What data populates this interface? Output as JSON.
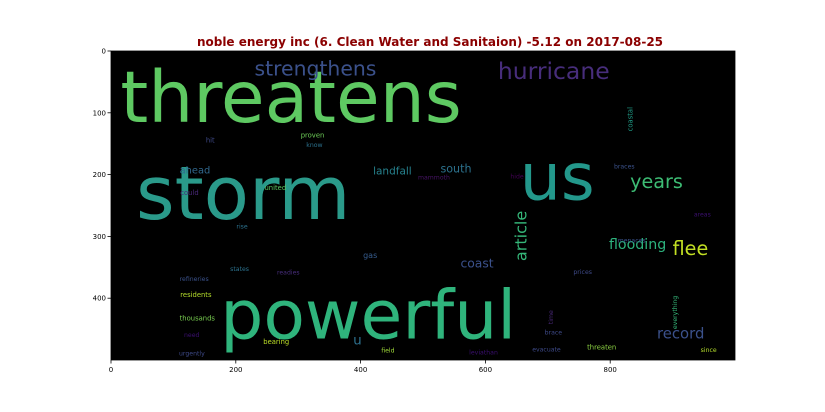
{
  "chart_data": {
    "type": "wordcloud",
    "title": "noble energy inc (6. Clean Water and Sanitaion) -5.12 on 2017-08-25",
    "title_color": "#8b0000",
    "background_color": "#000000",
    "xlim": [
      0,
      1000
    ],
    "ylim": [
      500,
      0
    ],
    "xticks": [
      0,
      200,
      400,
      600,
      800
    ],
    "yticks": [
      0,
      100,
      200,
      300,
      400
    ],
    "words": [
      {
        "text": "threatens",
        "x": 15,
        "y": 115,
        "size": 115,
        "color": "#5ec962",
        "rotate": false
      },
      {
        "text": "storm",
        "x": 40,
        "y": 272,
        "size": 120,
        "color": "#2a9a8a",
        "rotate": false
      },
      {
        "text": "us",
        "x": 655,
        "y": 240,
        "size": 105,
        "color": "#23988b",
        "rotate": false
      },
      {
        "text": "powerful",
        "x": 175,
        "y": 465,
        "size": 110,
        "color": "#2fb47c",
        "rotate": false
      },
      {
        "text": "hurricane",
        "x": 620,
        "y": 45,
        "size": 38,
        "color": "#472d7b",
        "rotate": false
      },
      {
        "text": "strengthens",
        "x": 230,
        "y": 40,
        "size": 33,
        "color": "#3b518b",
        "rotate": false
      },
      {
        "text": "years",
        "x": 832,
        "y": 222,
        "size": 31,
        "color": "#3dbc74",
        "rotate": false
      },
      {
        "text": "flee",
        "x": 900,
        "y": 330,
        "size": 31,
        "color": "#c2df23",
        "rotate": false
      },
      {
        "text": "record",
        "x": 875,
        "y": 465,
        "size": 24,
        "color": "#3b518b",
        "rotate": false
      },
      {
        "text": "flooding",
        "x": 798,
        "y": 320,
        "size": 23,
        "color": "#2db27d",
        "rotate": false
      },
      {
        "text": "article",
        "x": 666,
        "y": 340,
        "size": 26,
        "color": "#35b779",
        "rotate": true
      },
      {
        "text": "coast",
        "x": 560,
        "y": 350,
        "size": 20,
        "color": "#3b518b",
        "rotate": false
      },
      {
        "text": "south",
        "x": 528,
        "y": 197,
        "size": 18,
        "color": "#2c728e",
        "rotate": false
      },
      {
        "text": "landfall",
        "x": 420,
        "y": 200,
        "size": 17,
        "color": "#26828e",
        "rotate": false
      },
      {
        "text": "ahead",
        "x": 110,
        "y": 198,
        "size": 16,
        "color": "#31688e",
        "rotate": false
      },
      {
        "text": "u",
        "x": 388,
        "y": 475,
        "size": 22,
        "color": "#2d708e",
        "rotate": false
      },
      {
        "text": "gas",
        "x": 404,
        "y": 335,
        "size": 13,
        "color": "#365c8d",
        "rotate": false
      },
      {
        "text": "coastal",
        "x": 836,
        "y": 130,
        "size": 11,
        "color": "#1f9e89",
        "rotate": true
      },
      {
        "text": "braces",
        "x": 806,
        "y": 190,
        "size": 10,
        "color": "#3b528b",
        "rotate": false
      },
      {
        "text": "hide",
        "x": 640,
        "y": 206,
        "size": 10,
        "color": "#440154",
        "rotate": false
      },
      {
        "text": "mammoth",
        "x": 492,
        "y": 208,
        "size": 10,
        "color": "#481467",
        "rotate": false
      },
      {
        "text": "proven",
        "x": 304,
        "y": 140,
        "size": 11,
        "color": "#6ece58",
        "rotate": false
      },
      {
        "text": "know",
        "x": 313,
        "y": 155,
        "size": 10,
        "color": "#2c728e",
        "rotate": false
      },
      {
        "text": "hit",
        "x": 152,
        "y": 148,
        "size": 11,
        "color": "#3e4a89",
        "rotate": false
      },
      {
        "text": "united",
        "x": 246,
        "y": 225,
        "size": 11,
        "color": "#5ec962",
        "rotate": false
      },
      {
        "text": "could",
        "x": 111,
        "y": 233,
        "size": 11,
        "color": "#482878",
        "rotate": false
      },
      {
        "text": "rise",
        "x": 201,
        "y": 287,
        "size": 10,
        "color": "#2c728e",
        "rotate": false
      },
      {
        "text": "areas",
        "x": 934,
        "y": 268,
        "size": 10,
        "color": "#3b0f70",
        "rotate": false
      },
      {
        "text": "menaces",
        "x": 812,
        "y": 310,
        "size": 10,
        "color": "#3b528b",
        "rotate": false
      },
      {
        "text": "states",
        "x": 191,
        "y": 356,
        "size": 10,
        "color": "#2c728e",
        "rotate": false
      },
      {
        "text": "readies",
        "x": 266,
        "y": 362,
        "size": 10,
        "color": "#472d7b",
        "rotate": false
      },
      {
        "text": "refineries",
        "x": 110,
        "y": 372,
        "size": 10,
        "color": "#3b528b",
        "rotate": false
      },
      {
        "text": "prices",
        "x": 741,
        "y": 361,
        "size": 10,
        "color": "#3e4a89",
        "rotate": false
      },
      {
        "text": "everything",
        "x": 907,
        "y": 450,
        "size": 10,
        "color": "#35b779",
        "rotate": true
      },
      {
        "text": "time",
        "x": 708,
        "y": 442,
        "size": 10,
        "color": "#482878",
        "rotate": true
      },
      {
        "text": "residents",
        "x": 111,
        "y": 398,
        "size": 11,
        "color": "#b5de2b",
        "rotate": false
      },
      {
        "text": "thousands",
        "x": 110,
        "y": 436,
        "size": 11,
        "color": "#7ad151",
        "rotate": false
      },
      {
        "text": "brace",
        "x": 695,
        "y": 459,
        "size": 10,
        "color": "#3e4a89",
        "rotate": false
      },
      {
        "text": "need",
        "x": 117,
        "y": 463,
        "size": 10,
        "color": "#3b0f70",
        "rotate": false
      },
      {
        "text": "bearing",
        "x": 244,
        "y": 474,
        "size": 11,
        "color": "#bddf26",
        "rotate": false
      },
      {
        "text": "threaten",
        "x": 763,
        "y": 483,
        "size": 11,
        "color": "#8fd744",
        "rotate": false
      },
      {
        "text": "evacuate",
        "x": 675,
        "y": 486,
        "size": 10,
        "color": "#3e4a89",
        "rotate": false
      },
      {
        "text": "field",
        "x": 433,
        "y": 488,
        "size": 10,
        "color": "#a0da39",
        "rotate": false
      },
      {
        "text": "leviathan",
        "x": 574,
        "y": 491,
        "size": 10,
        "color": "#3b0f70",
        "rotate": false
      },
      {
        "text": "since",
        "x": 945,
        "y": 487,
        "size": 10,
        "color": "#b5de2b",
        "rotate": false
      },
      {
        "text": "urgently",
        "x": 109,
        "y": 493,
        "size": 10,
        "color": "#3e4a89",
        "rotate": false
      }
    ]
  }
}
